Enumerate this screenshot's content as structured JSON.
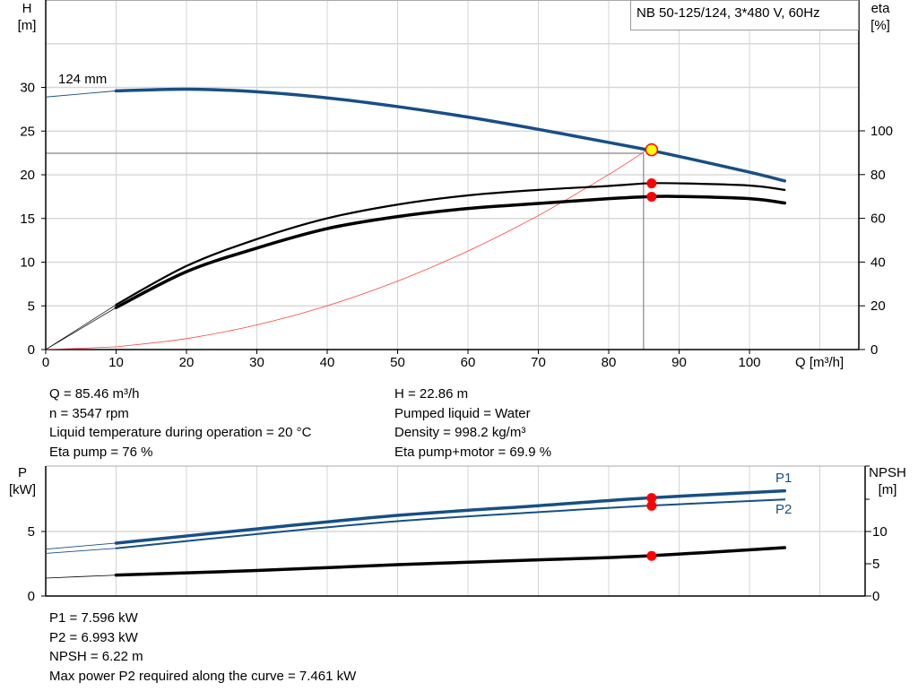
{
  "chart_data": [
    {
      "type": "line",
      "title": "NB 50-125/124, 3*480 V, 60Hz",
      "xlabel": "Q [m³/h]",
      "ylabel": "H\n[m]",
      "y2label": "eta\n[%]",
      "xlim": [
        0,
        115
      ],
      "ylim": [
        0,
        40
      ],
      "y2lim": [
        0,
        164
      ],
      "x_ticks": [
        0,
        10,
        20,
        30,
        40,
        50,
        60,
        70,
        80,
        90,
        100
      ],
      "y_ticks": [
        0,
        5,
        10,
        15,
        20,
        25,
        30
      ],
      "y2_ticks": [
        0,
        20,
        40,
        60,
        80,
        100
      ],
      "grid": true,
      "curve_label": "124 mm",
      "series": [
        {
          "axis": "H",
          "color": "#174f86",
          "x": [
            0,
            10,
            20,
            30,
            40,
            50,
            60,
            70,
            80,
            85.46,
            90,
            100,
            105
          ],
          "values": [
            28.9,
            29.6,
            29.8,
            29.5,
            28.8,
            27.8,
            26.6,
            25.2,
            23.7,
            22.86,
            22.1,
            20.3,
            19.3
          ]
        },
        {
          "axis": "eta",
          "color": "#000000",
          "x": [
            0,
            10,
            20,
            30,
            40,
            50,
            60,
            70,
            80,
            85.46,
            90,
            100,
            105
          ],
          "values": [
            0,
            20.5,
            38.2,
            50.5,
            60,
            66.3,
            70.5,
            73,
            74.8,
            76,
            76,
            75,
            73
          ]
        },
        {
          "axis": "eta",
          "color": "#000000",
          "x": [
            0,
            10,
            20,
            30,
            40,
            50,
            60,
            70,
            80,
            85.46,
            90,
            100,
            105
          ],
          "values": [
            0,
            19.2,
            35.6,
            46.4,
            55.3,
            60.8,
            64.5,
            66.8,
            69,
            69.9,
            70,
            69,
            67
          ]
        },
        {
          "axis": "H",
          "color": "#ff4040",
          "x": [
            0,
            10,
            20,
            30,
            40,
            50,
            60,
            70,
            80,
            85.46
          ],
          "values": [
            0,
            0.31,
            1.25,
            2.82,
            5.01,
            7.83,
            11.27,
            15.34,
            20.03,
            22.86
          ]
        }
      ],
      "operating_point": {
        "Q": 85.46,
        "H": 22.86,
        "eta_pump": 76,
        "eta_total": 69.9
      }
    },
    {
      "type": "line",
      "ylabel": "P\n[kW]",
      "y2label": "NPSH\n[m]",
      "xlim": [
        0,
        115
      ],
      "ylim": [
        0,
        10
      ],
      "y2lim": [
        0,
        20
      ],
      "y_ticks": [
        0,
        5
      ],
      "y2_ticks": [
        0,
        5,
        10
      ],
      "grid": true,
      "series": [
        {
          "name": "P1",
          "axis": "P",
          "color": "#174f86",
          "x": [
            0,
            10,
            30,
            50,
            70,
            85.46,
            105
          ],
          "values": [
            3.63,
            4.1,
            5.2,
            6.25,
            7.0,
            7.596,
            8.15
          ]
        },
        {
          "name": "P2",
          "axis": "P",
          "color": "#174f86",
          "x": [
            0,
            10,
            30,
            50,
            70,
            85.46,
            105
          ],
          "values": [
            3.3,
            3.7,
            4.8,
            5.8,
            6.5,
            6.993,
            7.48
          ]
        },
        {
          "axis": "NPSH",
          "color": "#000000",
          "x": [
            0,
            10,
            30,
            50,
            70,
            85.46,
            105
          ],
          "values": [
            2.78,
            3.24,
            3.95,
            4.86,
            5.6,
            6.22,
            7.5
          ]
        }
      ]
    }
  ],
  "info_top": {
    "left": [
      "Q = 85.46 m³/h",
      "n = 3547 rpm",
      "Liquid temperature during operation = 20 °C",
      "Eta pump = 76 %"
    ],
    "right": [
      "H = 22.86 m",
      "Pumped liquid = Water",
      "Density = 998.2 kg/m³",
      "Eta pump+motor = 69.9 %"
    ]
  },
  "info_bottom": [
    "P1 = 7.596 kW",
    "P2 = 6.993 kW",
    "NPSH = 6.22 m",
    "Max power P2 required along the curve = 7.461 kW"
  ]
}
